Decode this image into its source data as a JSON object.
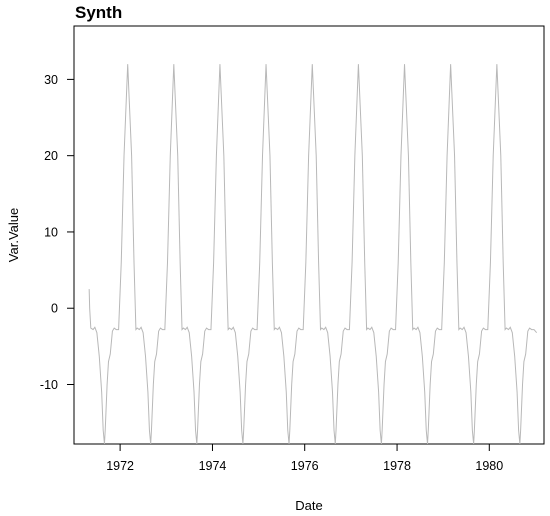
{
  "chart_data": {
    "type": "line",
    "title": "Synth",
    "xlabel": "Date",
    "ylabel": "Var.Value",
    "xlim": [
      "1971-01-01",
      "1981-03-09"
    ],
    "ylim": [
      -17.8,
      37
    ],
    "x_ticks": [
      "1972-01-01",
      "1974-01-01",
      "1976-01-01",
      "1978-01-01",
      "1980-01-01"
    ],
    "x_tick_labels": [
      "1972",
      "1974",
      "1976",
      "1978",
      "1980"
    ],
    "y_ticks": [
      -10,
      0,
      10,
      20,
      30
    ],
    "y_tick_labels": [
      "-10",
      "0",
      "10",
      "20",
      "30"
    ],
    "grid": false,
    "series": [
      {
        "color": "#b8b8b8",
        "x": [
          "1971-05-01",
          "1971-05-05",
          "1971-05-14",
          "1971-06-01",
          "1971-06-15",
          "1971-07-01",
          "1971-07-20",
          "1971-08-08",
          "1971-08-20",
          "1971-08-30",
          "1971-09-05",
          "1971-09-20",
          "1971-10-01",
          "1971-10-15",
          "1971-11-01",
          "1971-11-15",
          "1971-12-01",
          "1971-12-20",
          "1972-01-10",
          "1972-02-01",
          "1972-03-01",
          "1972-04-01",
          "1972-04-20",
          "1972-05-05",
          "1972-05-15",
          "1972-06-01",
          "1972-06-15",
          "1972-07-01",
          "1972-07-20",
          "1972-08-08",
          "1972-08-20",
          "1972-08-30",
          "1972-09-05",
          "1972-09-20",
          "1972-10-01",
          "1972-10-15",
          "1972-11-01",
          "1972-11-15",
          "1972-12-01",
          "1972-12-20",
          "1973-01-10",
          "1973-02-01",
          "1973-03-01",
          "1973-04-01",
          "1973-04-20",
          "1973-05-05",
          "1973-05-15",
          "1973-06-01",
          "1973-06-15",
          "1973-07-01",
          "1973-07-20",
          "1973-08-08",
          "1973-08-20",
          "1973-08-30",
          "1973-09-05",
          "1973-09-20",
          "1973-10-01",
          "1973-10-15",
          "1973-11-01",
          "1973-11-15",
          "1973-12-01",
          "1973-12-20",
          "1974-01-10",
          "1974-02-01",
          "1974-03-01",
          "1974-04-01",
          "1974-04-20",
          "1974-05-05",
          "1974-05-15",
          "1974-06-01",
          "1974-06-15",
          "1974-07-01",
          "1974-07-20",
          "1974-08-08",
          "1974-08-20",
          "1974-08-30",
          "1974-09-05",
          "1974-09-20",
          "1974-10-01",
          "1974-10-15",
          "1974-11-01",
          "1974-11-15",
          "1974-12-01",
          "1974-12-20",
          "1975-01-10",
          "1975-02-01",
          "1975-03-01",
          "1975-04-01",
          "1975-04-20",
          "1975-05-05",
          "1975-05-15",
          "1975-06-01",
          "1975-06-15",
          "1975-07-01",
          "1975-07-20",
          "1975-08-08",
          "1975-08-20",
          "1975-08-30",
          "1975-09-05",
          "1975-09-20",
          "1975-10-01",
          "1975-10-15",
          "1975-11-01",
          "1975-11-15",
          "1975-12-01",
          "1975-12-20",
          "1976-01-10",
          "1976-02-01",
          "1976-03-01",
          "1976-04-01",
          "1976-04-20",
          "1976-05-05",
          "1976-05-15",
          "1976-06-01",
          "1976-06-15",
          "1976-07-01",
          "1976-07-20",
          "1976-08-08",
          "1976-08-20",
          "1976-08-30",
          "1976-09-05",
          "1976-09-20",
          "1976-10-01",
          "1976-10-15",
          "1976-11-01",
          "1976-11-15",
          "1976-12-01",
          "1976-12-20",
          "1977-01-10",
          "1977-02-01",
          "1977-03-01",
          "1977-04-01",
          "1977-04-20",
          "1977-05-05",
          "1977-05-15",
          "1977-06-01",
          "1977-06-15",
          "1977-07-01",
          "1977-07-20",
          "1977-08-08",
          "1977-08-20",
          "1977-08-30",
          "1977-09-05",
          "1977-09-20",
          "1977-10-01",
          "1977-10-15",
          "1977-11-01",
          "1977-11-15",
          "1977-12-01",
          "1977-12-20",
          "1978-01-10",
          "1978-02-01",
          "1978-03-01",
          "1978-04-01",
          "1978-04-20",
          "1978-05-05",
          "1978-05-15",
          "1978-06-01",
          "1978-06-15",
          "1978-07-01",
          "1978-07-20",
          "1978-08-08",
          "1978-08-20",
          "1978-08-30",
          "1978-09-05",
          "1978-09-20",
          "1978-10-01",
          "1978-10-15",
          "1978-11-01",
          "1978-11-15",
          "1978-12-01",
          "1978-12-20",
          "1979-01-10",
          "1979-02-01",
          "1979-03-01",
          "1979-04-01",
          "1979-04-20",
          "1979-05-05",
          "1979-05-15",
          "1979-06-01",
          "1979-06-15",
          "1979-07-01",
          "1979-07-20",
          "1979-08-08",
          "1979-08-20",
          "1979-08-30",
          "1979-09-05",
          "1979-09-20",
          "1979-10-01",
          "1979-10-15",
          "1979-11-01",
          "1979-11-15",
          "1979-12-01",
          "1979-12-20",
          "1980-01-10",
          "1980-02-01",
          "1980-03-01",
          "1980-04-01",
          "1980-04-20",
          "1980-05-05",
          "1980-05-15",
          "1980-06-01",
          "1980-06-15",
          "1980-07-01",
          "1980-07-20",
          "1980-08-08",
          "1980-08-20",
          "1980-08-30",
          "1980-09-05",
          "1980-09-20",
          "1980-10-01",
          "1980-10-15",
          "1980-11-01",
          "1980-11-15",
          "1980-12-01",
          "1980-12-20",
          "1981-01-10"
        ],
        "y": [
          2.5,
          0,
          -2.6,
          -2.8,
          -2.5,
          -3.2,
          -6.3,
          -11,
          -16,
          -17.8,
          -16,
          -10,
          -7,
          -6,
          -3,
          -2.6,
          -2.8,
          -2.8,
          6,
          20,
          32,
          20,
          6,
          -2.8,
          -2.6,
          -2.8,
          -2.5,
          -3.2,
          -6.3,
          -11,
          -16,
          -17.8,
          -16,
          -10,
          -7,
          -6,
          -3,
          -2.6,
          -2.8,
          -2.8,
          6,
          20,
          32,
          20,
          6,
          -2.8,
          -2.6,
          -2.8,
          -2.5,
          -3.2,
          -6.3,
          -11,
          -16,
          -17.8,
          -16,
          -10,
          -7,
          -6,
          -3,
          -2.6,
          -2.8,
          -2.8,
          6,
          20,
          32,
          20,
          6,
          -2.8,
          -2.6,
          -2.8,
          -2.5,
          -3.2,
          -6.3,
          -11,
          -16,
          -17.8,
          -16,
          -10,
          -7,
          -6,
          -3,
          -2.6,
          -2.8,
          -2.8,
          6,
          20,
          32,
          20,
          6,
          -2.8,
          -2.6,
          -2.8,
          -2.5,
          -3.2,
          -6.3,
          -11,
          -16,
          -17.8,
          -16,
          -10,
          -7,
          -6,
          -3,
          -2.6,
          -2.8,
          -2.8,
          6,
          20,
          32,
          20,
          6,
          -2.8,
          -2.6,
          -2.8,
          -2.5,
          -3.2,
          -6.3,
          -11,
          -16,
          -17.8,
          -16,
          -10,
          -7,
          -6,
          -3,
          -2.6,
          -2.8,
          -2.8,
          6,
          20,
          32,
          20,
          6,
          -2.8,
          -2.6,
          -2.8,
          -2.5,
          -3.2,
          -6.3,
          -11,
          -16,
          -17.8,
          -16,
          -10,
          -7,
          -6,
          -3,
          -2.6,
          -2.8,
          -2.8,
          6,
          20,
          32,
          20,
          6,
          -2.8,
          -2.6,
          -2.8,
          -2.5,
          -3.2,
          -6.3,
          -11,
          -16,
          -17.8,
          -16,
          -10,
          -7,
          -6,
          -3,
          -2.6,
          -2.8,
          -2.8,
          6,
          20,
          32,
          20,
          6,
          -2.8,
          -2.6,
          -2.8,
          -2.5,
          -3.2,
          -6.3,
          -11,
          -16,
          -17.8,
          -16,
          -10,
          -7,
          -6,
          -3,
          -2.6,
          -2.8,
          -2.8,
          6,
          20,
          32,
          20,
          6,
          -2.8,
          -2.6,
          -2.8,
          -2.5,
          -3.2,
          -6.3,
          -11,
          -16,
          -17.8,
          -16,
          -10,
          -7,
          -6,
          -3,
          -2.6,
          -2.8,
          -2.8,
          -3.2
        ]
      }
    ]
  }
}
